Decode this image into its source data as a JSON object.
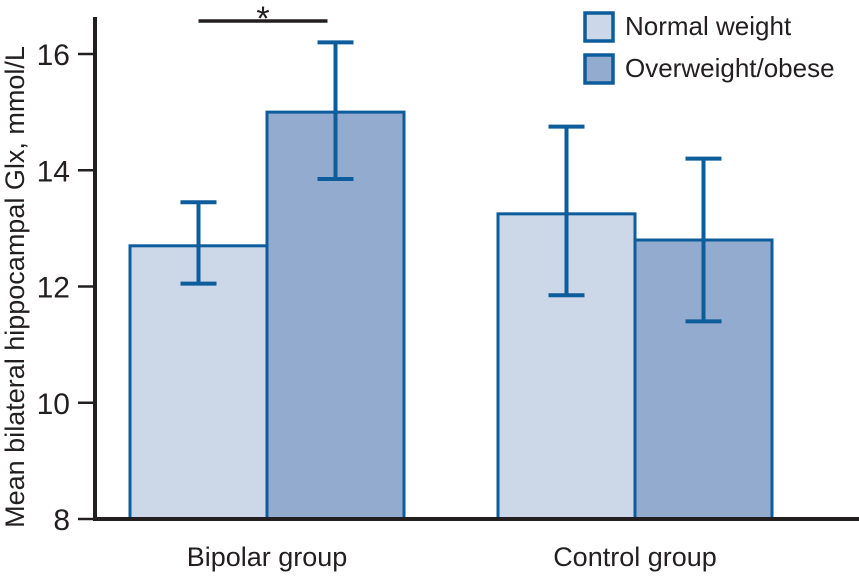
{
  "chart_data": {
    "type": "bar",
    "title": "",
    "categories": [
      "Bipolar group",
      "Control group"
    ],
    "series": [
      {
        "name": "Normal weight",
        "color": "#ccd7e8",
        "values": [
          12.7,
          13.25
        ],
        "error_low": [
          12.05,
          11.85
        ],
        "error_high": [
          13.45,
          14.75
        ]
      },
      {
        "name": "Overweight/obese",
        "color": "#93abce",
        "values": [
          15.0,
          12.8
        ],
        "error_low": [
          13.85,
          11.4
        ],
        "error_high": [
          16.2,
          14.2
        ]
      }
    ],
    "xlabel": "",
    "ylabel": "Mean bilateral hippocampal Glx, mmol/L",
    "ylim": [
      8,
      16.8
    ],
    "yticks": [
      8,
      10,
      12,
      14,
      16
    ],
    "grid": false,
    "legend_position": "top-right",
    "significance": {
      "symbol": "*",
      "category": "Bipolar group",
      "between_series": [
        "Normal weight",
        "Overweight/obese"
      ]
    },
    "colors": {
      "bar_border": "#0d5c9b",
      "error_bar": "#0d5c9b",
      "axis": "#231f20",
      "text": "#231f20",
      "background": "#ffffff"
    }
  }
}
